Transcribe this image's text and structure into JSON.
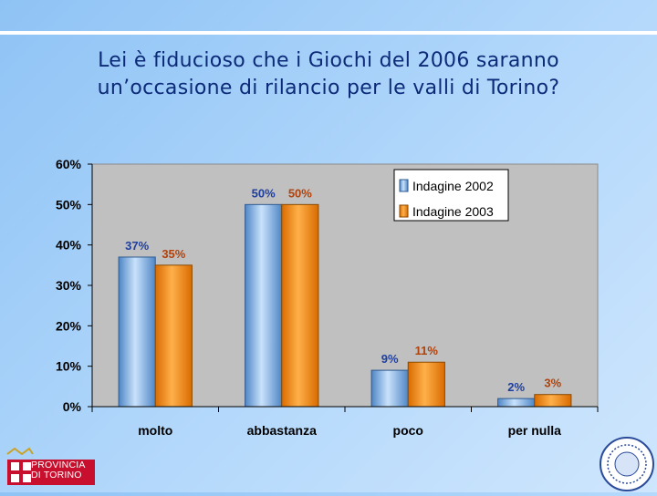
{
  "title": {
    "line1": "Lei è fiducioso che i Giochi del 2006 saranno",
    "line2": "un’occasione di rilancio per le valli di Torino?"
  },
  "colors": {
    "series_2002": "#6fa3dc",
    "series_2003": "#f08a0c",
    "label_2002": "#1f3f9f",
    "label_2003": "#b0420c",
    "plot_bg": "#c0c0c0"
  },
  "logos": {
    "provincia_line1": "PROVINCIA",
    "provincia_line2": "DI TORINO"
  },
  "chart_data": {
    "type": "bar",
    "categories": [
      "molto",
      "abbastanza",
      "poco",
      "per nulla"
    ],
    "series": [
      {
        "name": "Indagine 2002",
        "values": [
          37,
          50,
          9,
          2
        ],
        "labels": [
          "37%",
          "50%",
          "9%",
          "2%"
        ]
      },
      {
        "name": "Indagine 2003",
        "values": [
          35,
          50,
          11,
          3
        ],
        "labels": [
          "35%",
          "50%",
          "11%",
          "3%"
        ]
      }
    ],
    "yticks": [
      "0%",
      "10%",
      "20%",
      "30%",
      "40%",
      "50%",
      "60%"
    ],
    "ylim": [
      0,
      60
    ],
    "grid": false,
    "legend": "top-right"
  }
}
